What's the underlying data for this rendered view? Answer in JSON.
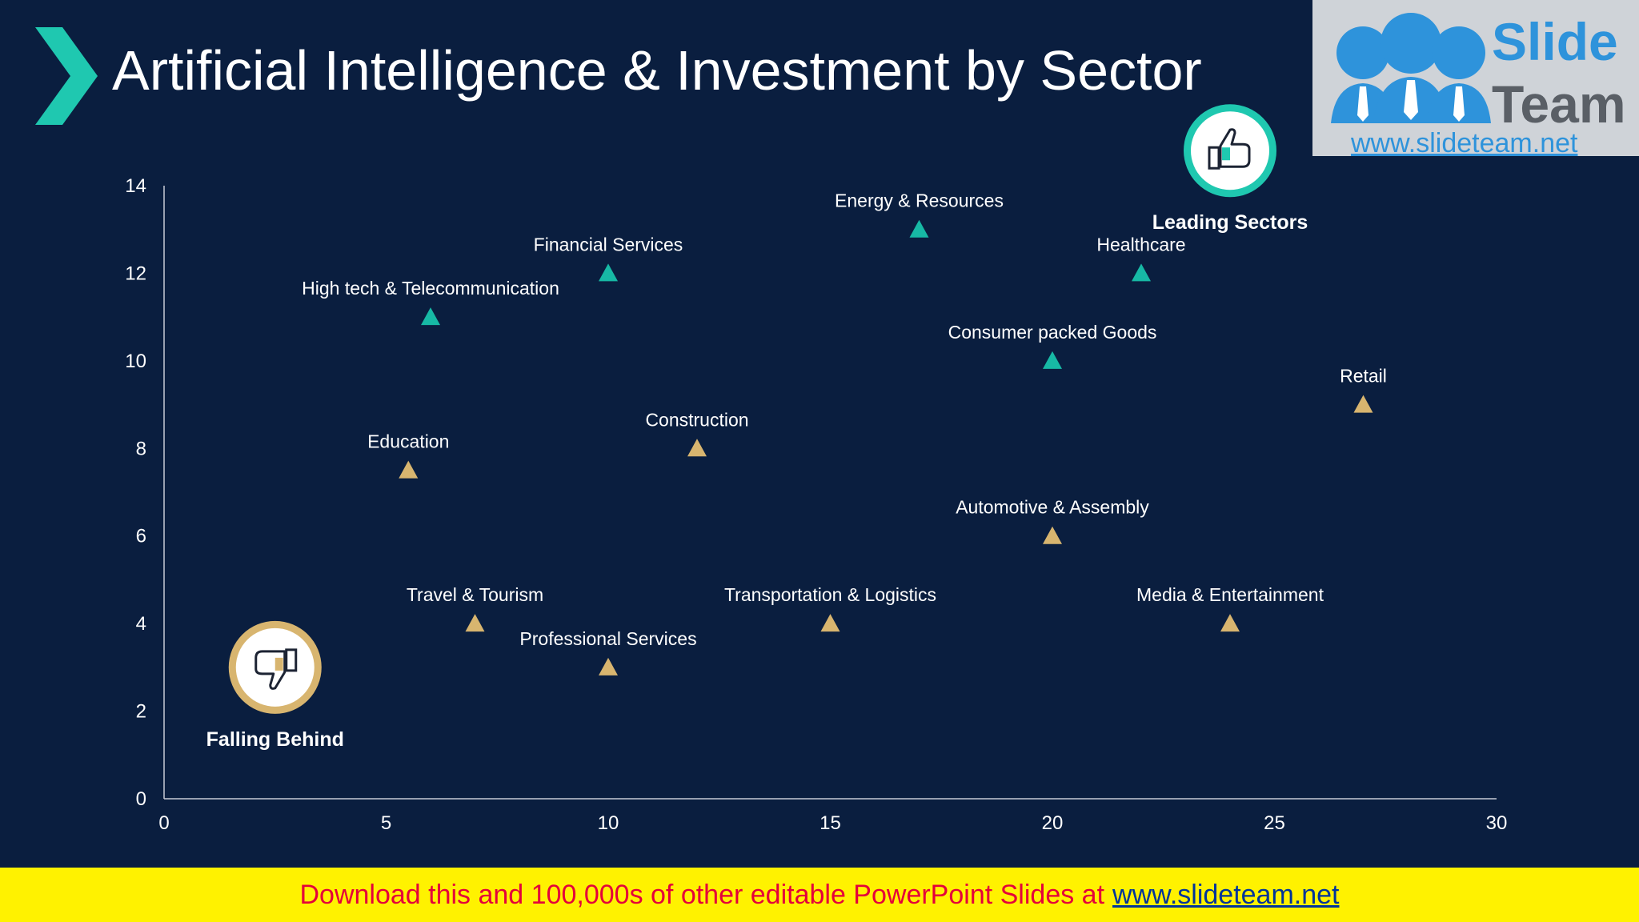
{
  "title": "Artificial Intelligence & Investment by Sector",
  "logo": {
    "line1": "Slide",
    "line2": "Team",
    "url": "www.slideteam.net"
  },
  "banner": {
    "text": "Download this and 100,000s of other editable PowerPoint Slides at",
    "link": "www.slideteam.net"
  },
  "colors": {
    "background": "#0a1e3f",
    "leading": "#17b9a5",
    "falling": "#d8b56f",
    "accent": "#1fc8b0",
    "banner": "#fff200",
    "banner_text": "#e4003a"
  },
  "chart_data": {
    "type": "scatter",
    "xlim": [
      0,
      30
    ],
    "ylim": [
      0,
      14
    ],
    "x_ticks": [
      0,
      5,
      10,
      15,
      20,
      25,
      30
    ],
    "y_ticks": [
      0,
      2,
      4,
      6,
      8,
      10,
      12,
      14
    ],
    "grid": false,
    "annotations": [
      {
        "label": "Leading Sectors",
        "icon": "thumbs-up-icon",
        "x": 24.0,
        "y": 14.8
      },
      {
        "label": "Falling Behind",
        "icon": "thumbs-down-icon",
        "x": 2.5,
        "y": 3.0
      }
    ],
    "points": [
      {
        "label": "Energy & Resources",
        "x": 17,
        "y": 13,
        "group": "leading"
      },
      {
        "label": "Financial Services",
        "x": 10,
        "y": 12,
        "group": "leading"
      },
      {
        "label": "Healthcare",
        "x": 22,
        "y": 12,
        "group": "leading"
      },
      {
        "label": "High tech & Telecommunication",
        "x": 6,
        "y": 11,
        "group": "leading"
      },
      {
        "label": "Consumer packed Goods",
        "x": 20,
        "y": 10,
        "group": "leading"
      },
      {
        "label": "Retail",
        "x": 27,
        "y": 9,
        "group": "falling"
      },
      {
        "label": "Education",
        "x": 5.5,
        "y": 7.5,
        "group": "falling"
      },
      {
        "label": "Construction",
        "x": 12,
        "y": 8,
        "group": "falling"
      },
      {
        "label": "Automotive & Assembly",
        "x": 20,
        "y": 6,
        "group": "falling"
      },
      {
        "label": "Travel & Tourism",
        "x": 7,
        "y": 4,
        "group": "falling"
      },
      {
        "label": "Transportation & Logistics",
        "x": 15,
        "y": 4,
        "group": "falling"
      },
      {
        "label": "Media & Entertainment",
        "x": 24,
        "y": 4,
        "group": "falling"
      },
      {
        "label": "Professional Services",
        "x": 10,
        "y": 3,
        "group": "falling"
      }
    ]
  }
}
